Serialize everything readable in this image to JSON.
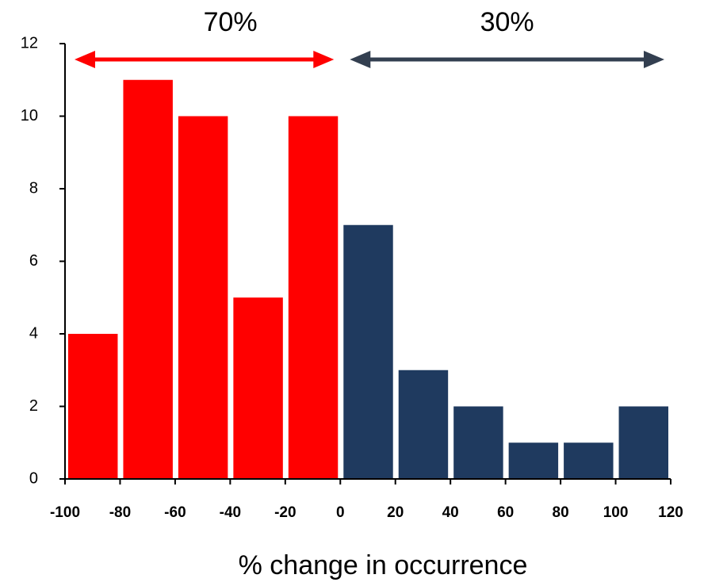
{
  "chart_data": {
    "type": "histogram",
    "x_label": "% change in occurrence",
    "bins": [
      -100,
      -80,
      -60,
      -40,
      -20,
      0,
      20,
      40,
      60,
      80,
      100,
      120
    ],
    "values": [
      4,
      11,
      10,
      5,
      10,
      7,
      3,
      2,
      1,
      1,
      2
    ],
    "colors": [
      "#ff0000",
      "#ff0000",
      "#ff0000",
      "#ff0000",
      "#ff0000",
      "#1f3a5f",
      "#1f3a5f",
      "#1f3a5f",
      "#1f3a5f",
      "#1f3a5f",
      "#1f3a5f"
    ],
    "annotations": [
      {
        "text": "70%",
        "color": "#ff0000"
      },
      {
        "text": "30%",
        "color": "#333f50"
      }
    ],
    "xlim": [
      -100,
      120
    ],
    "xticks": [
      -100,
      -80,
      -60,
      -40,
      -20,
      0,
      20,
      40,
      60,
      80,
      100,
      120
    ],
    "ylim": [
      0,
      12
    ],
    "yticks": [
      0,
      2,
      4,
      6,
      8,
      10,
      12
    ],
    "grid": false
  }
}
